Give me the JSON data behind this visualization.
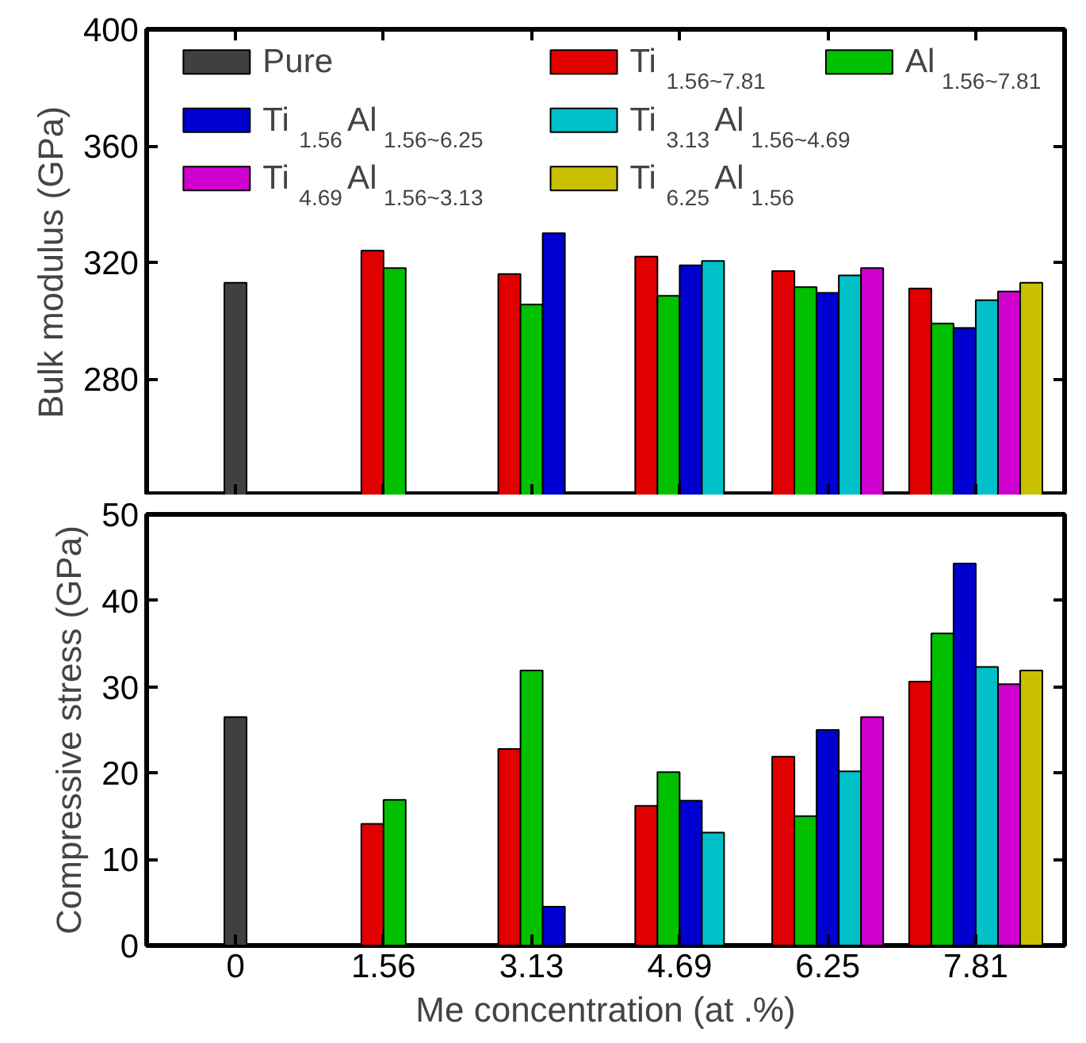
{
  "chart_data": [
    {
      "type": "bar",
      "ylabel": "Bulk modulus (GPa)",
      "categories": [
        "0",
        "1.56",
        "3.13",
        "4.69",
        "6.25",
        "7.81"
      ],
      "ylim": [
        240,
        400
      ],
      "yticks": [
        280,
        320,
        360,
        400
      ],
      "tick_labels": "y",
      "legend": "top",
      "grid": false,
      "series": [
        {
          "name": "Pure",
          "color": "#404040",
          "values": [
            313,
            null,
            null,
            null,
            null,
            null
          ]
        },
        {
          "name": "Ti$_{1.56~7.81}$",
          "color": "#e00000",
          "values": [
            null,
            324,
            316,
            322,
            317,
            311
          ]
        },
        {
          "name": "Al$_{1.56~7.81}$",
          "color": "#00c000",
          "values": [
            null,
            318,
            305.5,
            308.5,
            311.5,
            299
          ]
        },
        {
          "name": "Ti$_{1.56}$Al$_{1.56~6.25}$",
          "color": "#0000d0",
          "values": [
            null,
            null,
            330,
            319,
            309.5,
            297.5
          ]
        },
        {
          "name": "Ti$_{3.13}$Al$_{1.56~4.69}$",
          "color": "#00c0c8",
          "values": [
            null,
            null,
            null,
            320.5,
            315.5,
            307
          ]
        },
        {
          "name": "Ti$_{4.69}$Al$_{1.56~3.13}$",
          "color": "#d000d0",
          "values": [
            null,
            null,
            null,
            null,
            318,
            310
          ]
        },
        {
          "name": "Ti$_{6.25}$Al$_{1.56}$",
          "color": "#c8c000",
          "values": [
            null,
            null,
            null,
            null,
            null,
            313
          ]
        }
      ]
    },
    {
      "type": "bar",
      "xlabel": "Me concentration (at .%)",
      "ylabel": "Compressive stress (GPa)",
      "categories": [
        "0",
        "1.56",
        "3.13",
        "4.69",
        "6.25",
        "7.81"
      ],
      "ylim": [
        0,
        50
      ],
      "yticks": [
        0,
        10,
        20,
        30,
        40,
        50
      ],
      "grid": false,
      "series": [
        {
          "color": "#404040",
          "values": [
            26.5,
            null,
            null,
            null,
            null,
            null
          ]
        },
        {
          "color": "#e00000",
          "values": [
            null,
            14.1,
            22.8,
            16.2,
            21.9,
            30.6
          ]
        },
        {
          "color": "#00c000",
          "values": [
            null,
            16.9,
            31.9,
            20.1,
            15,
            36.2
          ]
        },
        {
          "color": "#0000d0",
          "values": [
            null,
            null,
            4.5,
            16.8,
            25,
            44.3
          ]
        },
        {
          "color": "#00c0c8",
          "values": [
            null,
            null,
            null,
            13.1,
            20.2,
            32.3
          ]
        },
        {
          "color": "#d000d0",
          "values": [
            null,
            null,
            null,
            null,
            26.5,
            30.3
          ]
        },
        {
          "color": "#c8c000",
          "values": [
            null,
            null,
            null,
            null,
            null,
            31.9
          ]
        }
      ]
    }
  ]
}
